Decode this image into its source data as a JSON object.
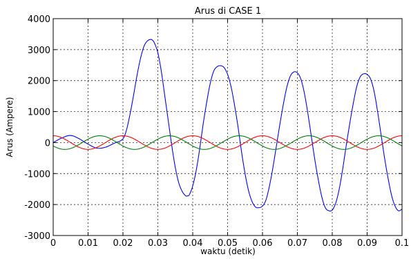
{
  "chart_data": {
    "type": "line",
    "title": "Arus di CASE 1",
    "xlabel": "waktu (detik)",
    "ylabel": "Arus (Ampere)",
    "xlim": [
      0,
      0.1
    ],
    "ylim": [
      -3000,
      4000
    ],
    "xticks": [
      "0",
      "0.01",
      "0.02",
      "0.03",
      "0.04",
      "0.05",
      "0.06",
      "0.07",
      "0.08",
      "0.09",
      "0.1"
    ],
    "yticks": [
      "-3000",
      "-2000",
      "-1000",
      "0",
      "1000",
      "2000",
      "3000",
      "4000"
    ],
    "grid": true,
    "series": [
      {
        "color": "#0000ff",
        "x": [
          0,
          0.0025,
          0.005,
          0.0075,
          0.01,
          0.0125,
          0.015,
          0.0175,
          0.02,
          0.021,
          0.022,
          0.023,
          0.024,
          0.025,
          0.026,
          0.027,
          0.028,
          0.0285,
          0.029,
          0.03,
          0.031,
          0.032,
          0.033,
          0.034,
          0.035,
          0.036,
          0.037,
          0.038,
          0.0385,
          0.039,
          0.04,
          0.041,
          0.042,
          0.043,
          0.044,
          0.045,
          0.046,
          0.047,
          0.048,
          0.049,
          0.05,
          0.051,
          0.052,
          0.053,
          0.054,
          0.055,
          0.056,
          0.057,
          0.058,
          0.059,
          0.06,
          0.061,
          0.062,
          0.063,
          0.064,
          0.065,
          0.066,
          0.067,
          0.068,
          0.069,
          0.07,
          0.071,
          0.072,
          0.073,
          0.074,
          0.075,
          0.076,
          0.077,
          0.078,
          0.079,
          0.08,
          0.081,
          0.082,
          0.083,
          0.084,
          0.085,
          0.086,
          0.087,
          0.088,
          0.089,
          0.09,
          0.091,
          0.092,
          0.093,
          0.094,
          0.095,
          0.096,
          0.097,
          0.098,
          0.099,
          0.1
        ],
        "y": [
          0,
          150,
          230,
          120,
          -50,
          -180,
          -150,
          -20,
          120,
          400,
          900,
          1500,
          2150,
          2700,
          3100,
          3280,
          3330,
          3300,
          3220,
          2900,
          2300,
          1500,
          700,
          -100,
          -800,
          -1300,
          -1580,
          -1720,
          -1720,
          -1690,
          -1400,
          -900,
          -200,
          600,
          1300,
          1900,
          2300,
          2450,
          2480,
          2420,
          2200,
          1800,
          1200,
          500,
          -300,
          -1000,
          -1550,
          -1900,
          -2080,
          -2100,
          -2050,
          -1850,
          -1400,
          -800,
          -100,
          600,
          1250,
          1800,
          2150,
          2280,
          2250,
          2050,
          1600,
          950,
          200,
          -550,
          -1200,
          -1750,
          -2100,
          -2200,
          -2180,
          -1950,
          -1500,
          -850,
          -100,
          600,
          1250,
          1800,
          2120,
          2220,
          2200,
          2050,
          1650,
          1000,
          250,
          -500,
          -1150,
          -1700,
          -2050,
          -2200,
          -2150
        ]
      },
      {
        "color": "#ff0000",
        "amplitude": 220,
        "frequency_hz": 50,
        "phase_deg": 90
      },
      {
        "color": "#008000",
        "amplitude": 220,
        "frequency_hz": 50,
        "phase_deg": -150
      }
    ]
  }
}
